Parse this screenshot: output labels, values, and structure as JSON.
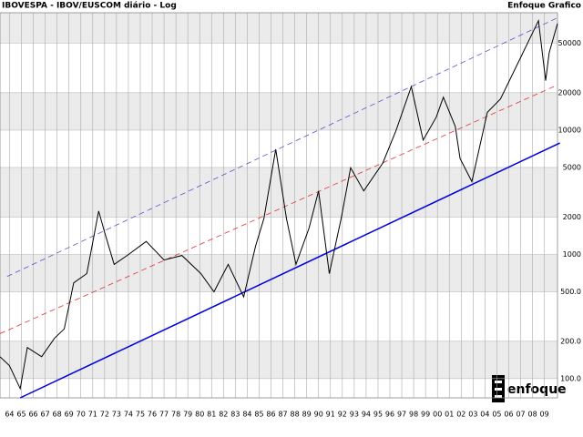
{
  "chart_data": {
    "type": "line",
    "title": "IBOVESPA - IBOV/EUSCOM diário - Log",
    "source": "Enfoque Grafico",
    "logo": "enfoque",
    "log_scale": true,
    "grid": true,
    "xlim": [
      1963.2,
      2010.1
    ],
    "ylim": [
      70,
      88000
    ],
    "yticks": [
      {
        "value": 100,
        "label": "100.0"
      },
      {
        "value": 200,
        "label": "200.0"
      },
      {
        "value": 500,
        "label": "500.0"
      },
      1000,
      2000,
      5000,
      10000,
      20000,
      50000
    ],
    "xticks": [
      {
        "value": 1964,
        "label": "64"
      },
      {
        "value": 1965,
        "label": "65"
      },
      {
        "value": 1966,
        "label": "66"
      },
      {
        "value": 1967,
        "label": "67"
      },
      {
        "value": 1968,
        "label": "68"
      },
      {
        "value": 1969,
        "label": "69"
      },
      {
        "value": 1970,
        "label": "70"
      },
      {
        "value": 1971,
        "label": "71"
      },
      {
        "value": 1972,
        "label": "72"
      },
      {
        "value": 1973,
        "label": "73"
      },
      {
        "value": 1974,
        "label": "74"
      },
      {
        "value": 1975,
        "label": "75"
      },
      {
        "value": 1976,
        "label": "76"
      },
      {
        "value": 1977,
        "label": "77"
      },
      {
        "value": 1978,
        "label": "78"
      },
      {
        "value": 1979,
        "label": "79"
      },
      {
        "value": 1980,
        "label": "80"
      },
      {
        "value": 1981,
        "label": "81"
      },
      {
        "value": 1982,
        "label": "82"
      },
      {
        "value": 1983,
        "label": "83"
      },
      {
        "value": 1984,
        "label": "84"
      },
      {
        "value": 1985,
        "label": "85"
      },
      {
        "value": 1986,
        "label": "86"
      },
      {
        "value": 1987,
        "label": "87"
      },
      {
        "value": 1988,
        "label": "88"
      },
      {
        "value": 1989,
        "label": "89"
      },
      {
        "value": 1990,
        "label": "90"
      },
      {
        "value": 1991,
        "label": "91"
      },
      {
        "value": 1992,
        "label": "92"
      },
      {
        "value": 1993,
        "label": "93"
      },
      {
        "value": 1994,
        "label": "94"
      },
      {
        "value": 1995,
        "label": "95"
      },
      {
        "value": 1996,
        "label": "96"
      },
      {
        "value": 1997,
        "label": "97"
      },
      {
        "value": 1998,
        "label": "98"
      },
      {
        "value": 1999,
        "label": "99"
      },
      {
        "value": 2000,
        "label": "00"
      },
      {
        "value": 2001,
        "label": "01"
      },
      {
        "value": 2002,
        "label": "02"
      },
      {
        "value": 2003,
        "label": "03"
      },
      {
        "value": 2004,
        "label": "04"
      },
      {
        "value": 2005,
        "label": "05"
      },
      {
        "value": 2006,
        "label": "06"
      },
      {
        "value": 2007,
        "label": "07"
      },
      {
        "value": 2008,
        "label": "08"
      },
      {
        "value": 2009,
        "label": "09"
      }
    ],
    "x": [
      1963.2,
      1964.0,
      1964.9,
      1965.5,
      1966.7,
      1967.8,
      1968.6,
      1969.4,
      1970.5,
      1971.5,
      1972.0,
      1972.8,
      1973.9,
      1975.5,
      1977.0,
      1978.5,
      1980.1,
      1981.2,
      1982.4,
      1983.7,
      1984.7,
      1985.4,
      1986.4,
      1987.3,
      1988.1,
      1989.2,
      1990.0,
      1990.9,
      1991.9,
      1992.7,
      1993.8,
      1995.4,
      1996.5,
      1997.8,
      1998.8,
      1999.9,
      2000.5,
      2001.5,
      2001.9,
      2002.9,
      2004.2,
      2005.3,
      2006.8,
      2008.5,
      2009.1,
      2009.4,
      2010.1
    ],
    "series": [
      {
        "color": "#000000",
        "values": [
          150,
          127,
          83,
          178,
          150,
          212,
          251,
          590,
          700,
          2230,
          1510,
          830,
          980,
          1270,
          900,
          980,
          700,
          500,
          830,
          455,
          1170,
          1940,
          7000,
          1940,
          830,
          1630,
          3240,
          700,
          1940,
          4970,
          3240,
          5430,
          9800,
          22400,
          8300,
          12700,
          18400,
          10700,
          5920,
          3850,
          13900,
          17800,
          35000,
          76000,
          25000,
          42000,
          72000
        ]
      }
    ],
    "trendlines": [
      {
        "color": "#0000dd",
        "style": "solid",
        "x": [
          1964.9,
          2010.3
        ],
        "values": [
          70,
          7870
        ]
      },
      {
        "color": "#dd3333",
        "style": "dashed",
        "x": [
          1963.2,
          2010.1
        ],
        "values": [
          230,
          23100
        ]
      },
      {
        "color": "#5555cc",
        "style": "dashed",
        "x": [
          1963.8,
          2010.1
        ],
        "values": [
          664,
          80100
        ]
      }
    ]
  }
}
